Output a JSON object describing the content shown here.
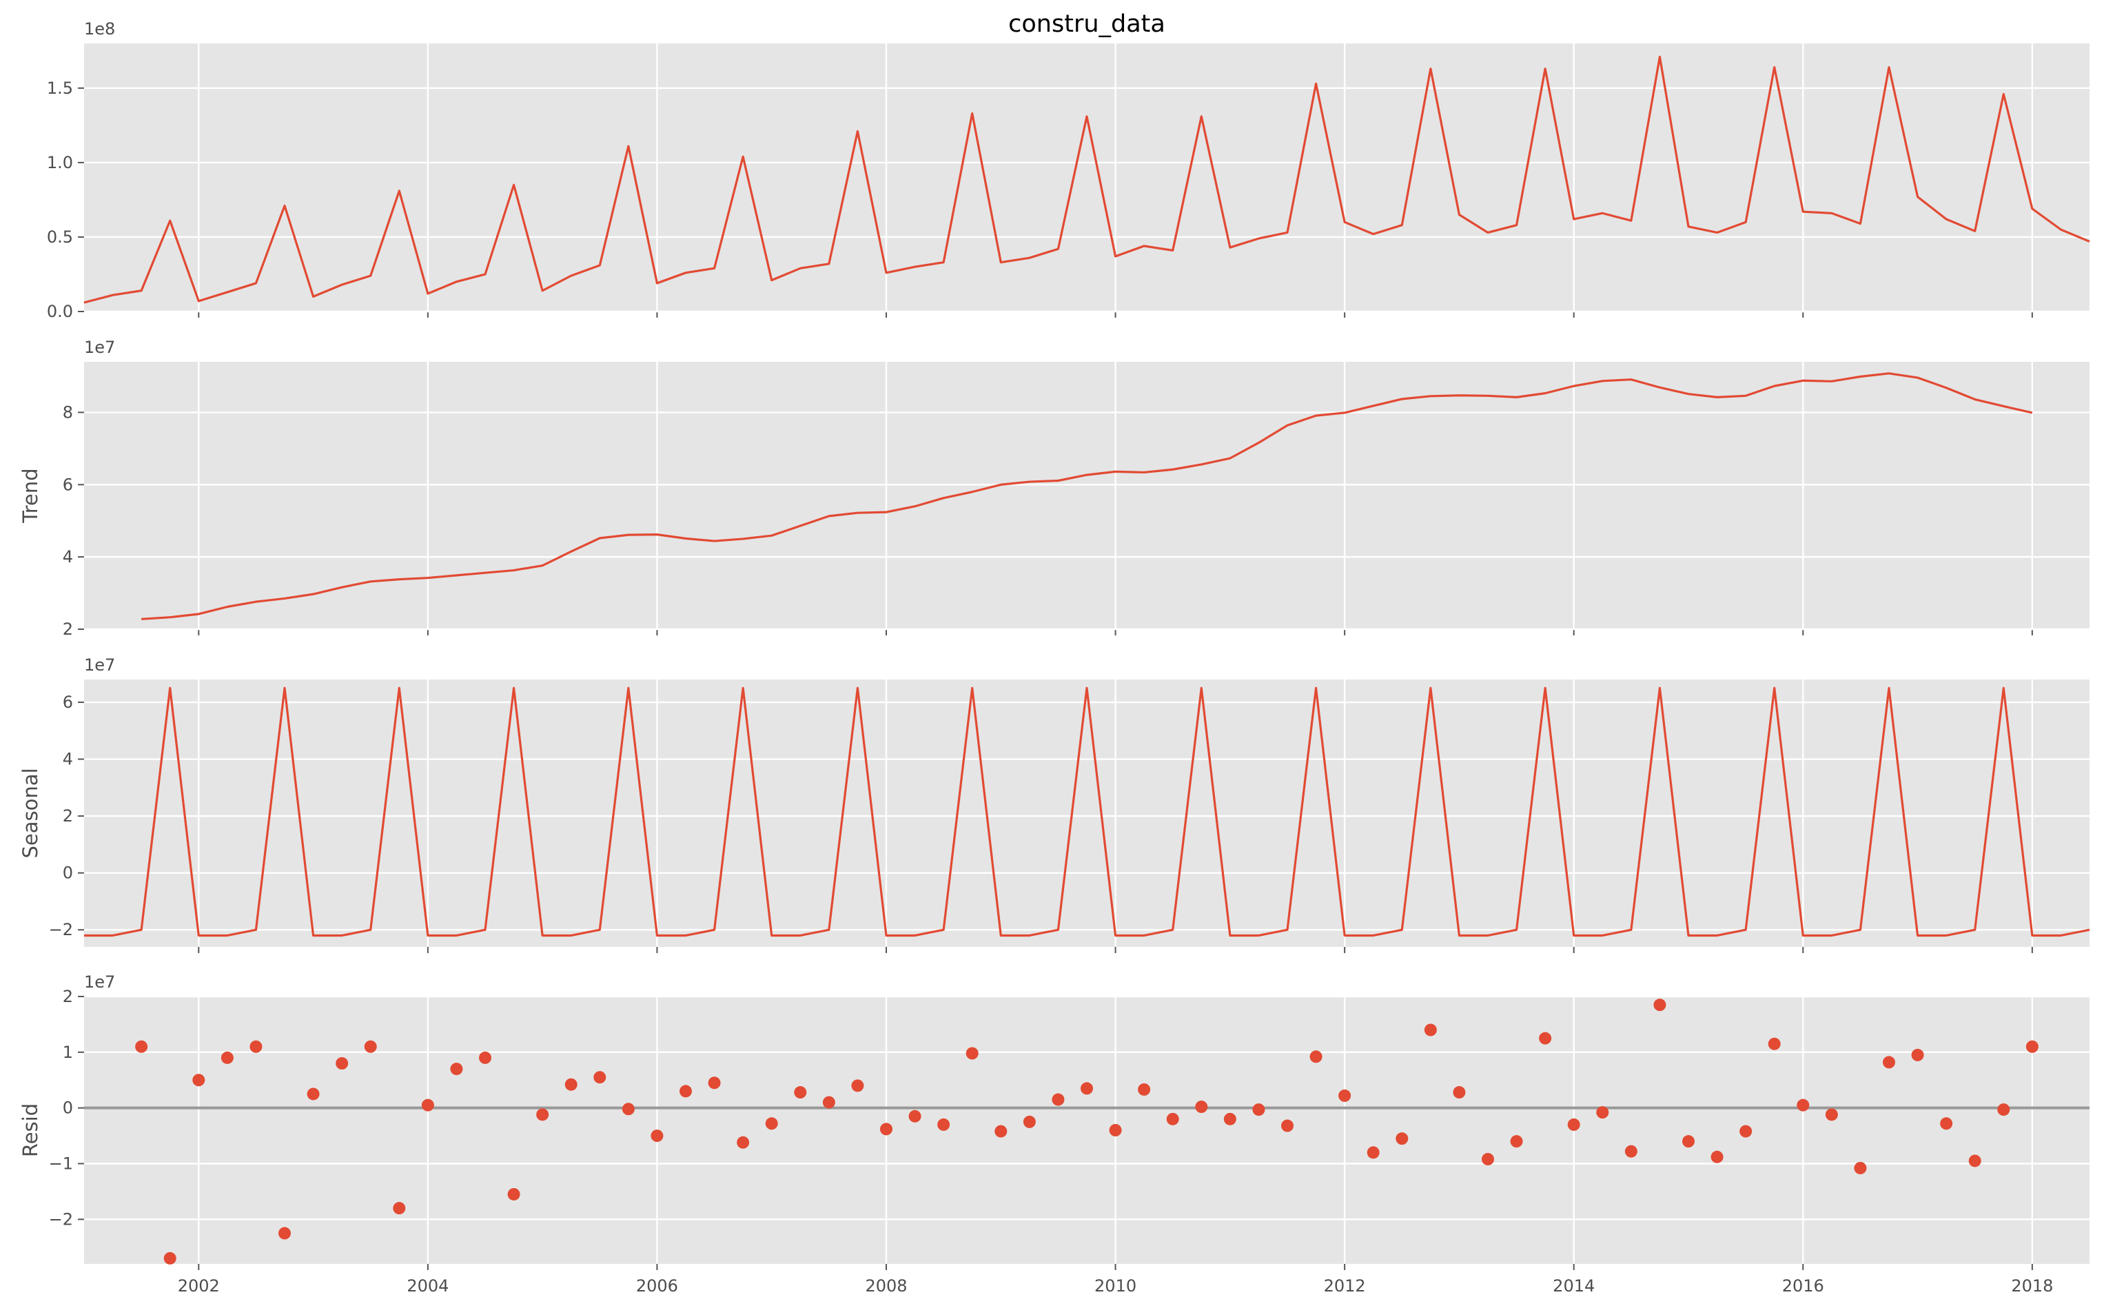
{
  "chart_data": {
    "type": "line",
    "title": "constru_data",
    "x_range": [
      "2001-01-01",
      "2018-07-01"
    ],
    "x_ticks": [
      "2002",
      "2004",
      "2006",
      "2008",
      "2010",
      "2012",
      "2014",
      "2016",
      "2018"
    ],
    "grid": true,
    "panels": [
      {
        "name": "observed",
        "ylabel": "",
        "offset_label": "1e8",
        "ylim": [
          0,
          1.8
        ],
        "y_ticks": [
          0.0,
          0.5,
          1.0,
          1.5
        ],
        "y_tick_labels": [
          "0.0",
          "0.5",
          "1.0",
          "1.5"
        ],
        "style": "line",
        "x": [
          "2001-01-01",
          "2001-04-01",
          "2001-07-01",
          "2001-10-01",
          "2002-01-01",
          "2002-04-01",
          "2002-07-01",
          "2002-10-01",
          "2003-01-01",
          "2003-04-01",
          "2003-07-01",
          "2003-10-01",
          "2004-01-01",
          "2004-04-01",
          "2004-07-01",
          "2004-10-01",
          "2005-01-01",
          "2005-04-01",
          "2005-07-01",
          "2005-10-01",
          "2006-01-01",
          "2006-04-01",
          "2006-07-01",
          "2006-10-01",
          "2007-01-01",
          "2007-04-01",
          "2007-07-01",
          "2007-10-01",
          "2008-01-01",
          "2008-04-01",
          "2008-07-01",
          "2008-10-01",
          "2009-01-01",
          "2009-04-01",
          "2009-07-01",
          "2009-10-01",
          "2010-01-01",
          "2010-04-01",
          "2010-07-01",
          "2010-10-01",
          "2011-01-01",
          "2011-04-01",
          "2011-07-01",
          "2011-10-01",
          "2012-01-01",
          "2012-04-01",
          "2012-07-01",
          "2012-10-01",
          "2013-01-01",
          "2013-04-01",
          "2013-07-01",
          "2013-10-01",
          "2014-01-01",
          "2014-04-01",
          "2014-07-01",
          "2014-10-01",
          "2015-01-01",
          "2015-04-01",
          "2015-07-01",
          "2015-10-01",
          "2016-01-01",
          "2016-04-01",
          "2016-07-01",
          "2016-10-01",
          "2017-01-01",
          "2017-04-01",
          "2017-07-01",
          "2017-10-01",
          "2018-01-01",
          "2018-04-01",
          "2018-07-01"
        ],
        "values": [
          0.06,
          0.11,
          0.14,
          0.61,
          0.07,
          0.13,
          0.19,
          0.71,
          0.1,
          0.18,
          0.24,
          0.81,
          0.12,
          0.2,
          0.25,
          0.85,
          0.14,
          0.24,
          0.31,
          1.11,
          0.19,
          0.26,
          0.29,
          1.04,
          0.21,
          0.29,
          0.32,
          1.21,
          0.26,
          0.3,
          0.33,
          1.33,
          0.33,
          0.36,
          0.42,
          1.31,
          0.37,
          0.44,
          0.41,
          1.31,
          0.43,
          0.49,
          0.53,
          1.53,
          0.6,
          0.52,
          0.58,
          1.63,
          0.65,
          0.53,
          0.58,
          1.63,
          0.62,
          0.66,
          0.61,
          1.71,
          0.57,
          0.53,
          0.6,
          1.64,
          0.67,
          0.66,
          0.59,
          1.64,
          0.77,
          0.62,
          0.54,
          1.46,
          0.69,
          0.55,
          0.47
        ]
      },
      {
        "name": "trend",
        "ylabel": "Trend",
        "offset_label": "1e7",
        "ylim": [
          2,
          9.4
        ],
        "y_ticks": [
          2,
          4,
          6,
          8
        ],
        "y_tick_labels": [
          "2",
          "4",
          "6",
          "8"
        ],
        "style": "line",
        "x": [
          "2001-07-01",
          "2001-10-01",
          "2002-01-01",
          "2002-04-01",
          "2002-07-01",
          "2002-10-01",
          "2003-01-01",
          "2003-04-01",
          "2003-07-01",
          "2003-10-01",
          "2004-01-01",
          "2004-04-01",
          "2004-07-01",
          "2004-10-01",
          "2005-01-01",
          "2005-04-01",
          "2005-07-01",
          "2005-10-01",
          "2006-01-01",
          "2006-04-01",
          "2006-07-01",
          "2006-10-01",
          "2007-01-01",
          "2007-04-01",
          "2007-07-01",
          "2007-10-01",
          "2008-01-01",
          "2008-04-01",
          "2008-07-01",
          "2008-10-01",
          "2009-01-01",
          "2009-04-01",
          "2009-07-01",
          "2009-10-01",
          "2010-01-01",
          "2010-04-01",
          "2010-07-01",
          "2010-10-01",
          "2011-01-01",
          "2011-04-01",
          "2011-07-01",
          "2011-10-01",
          "2012-01-01",
          "2012-04-01",
          "2012-07-01",
          "2012-10-01",
          "2013-01-01",
          "2013-04-01",
          "2013-07-01",
          "2013-10-01",
          "2014-01-01",
          "2014-04-01",
          "2014-07-01",
          "2014-10-01",
          "2015-01-01",
          "2015-04-01",
          "2015-07-01",
          "2015-10-01",
          "2016-01-01",
          "2016-04-01",
          "2016-07-01",
          "2016-10-01",
          "2017-01-01",
          "2017-04-01",
          "2017-07-01",
          "2017-10-01",
          "2018-01-01"
        ],
        "values": [
          2.28,
          2.33,
          2.42,
          2.62,
          2.76,
          2.85,
          2.97,
          3.16,
          3.32,
          3.38,
          3.42,
          3.49,
          3.56,
          3.63,
          3.76,
          4.15,
          4.52,
          4.61,
          4.62,
          4.51,
          4.44,
          4.5,
          4.59,
          4.86,
          5.13,
          5.22,
          5.24,
          5.4,
          5.63,
          5.8,
          6.0,
          6.08,
          6.11,
          6.27,
          6.36,
          6.34,
          6.42,
          6.56,
          6.73,
          7.16,
          7.64,
          7.91,
          7.99,
          8.18,
          8.37,
          8.45,
          8.47,
          8.46,
          8.42,
          8.53,
          8.73,
          8.87,
          8.91,
          8.69,
          8.51,
          8.42,
          8.46,
          8.73,
          8.88,
          8.86,
          8.99,
          9.08,
          8.96,
          8.68,
          8.36,
          8.17,
          7.99
        ]
      },
      {
        "name": "seasonal",
        "ylabel": "Seasonal",
        "offset_label": "1e7",
        "ylim": [
          -2.6,
          6.8
        ],
        "y_ticks": [
          -2,
          0,
          2,
          4,
          6
        ],
        "y_tick_labels": [
          "−2",
          "0",
          "2",
          "4",
          "6"
        ],
        "style": "line",
        "x": [
          "2001-01-01",
          "2001-04-01",
          "2001-07-01",
          "2001-10-01",
          "2002-01-01",
          "2002-04-01",
          "2002-07-01",
          "2002-10-01",
          "2003-01-01",
          "2003-04-01",
          "2003-07-01",
          "2003-10-01",
          "2004-01-01",
          "2004-04-01",
          "2004-07-01",
          "2004-10-01",
          "2005-01-01",
          "2005-04-01",
          "2005-07-01",
          "2005-10-01",
          "2006-01-01",
          "2006-04-01",
          "2006-07-01",
          "2006-10-01",
          "2007-01-01",
          "2007-04-01",
          "2007-07-01",
          "2007-10-01",
          "2008-01-01",
          "2008-04-01",
          "2008-07-01",
          "2008-10-01",
          "2009-01-01",
          "2009-04-01",
          "2009-07-01",
          "2009-10-01",
          "2010-01-01",
          "2010-04-01",
          "2010-07-01",
          "2010-10-01",
          "2011-01-01",
          "2011-04-01",
          "2011-07-01",
          "2011-10-01",
          "2012-01-01",
          "2012-04-01",
          "2012-07-01",
          "2012-10-01",
          "2013-01-01",
          "2013-04-01",
          "2013-07-01",
          "2013-10-01",
          "2014-01-01",
          "2014-04-01",
          "2014-07-01",
          "2014-10-01",
          "2015-01-01",
          "2015-04-01",
          "2015-07-01",
          "2015-10-01",
          "2016-01-01",
          "2016-04-01",
          "2016-07-01",
          "2016-10-01",
          "2017-01-01",
          "2017-04-01",
          "2017-07-01",
          "2017-10-01",
          "2018-01-01",
          "2018-04-01",
          "2018-07-01"
        ],
        "values": [
          -2.2,
          -2.2,
          -2.0,
          6.5,
          -2.2,
          -2.2,
          -2.0,
          6.5,
          -2.2,
          -2.2,
          -2.0,
          6.5,
          -2.2,
          -2.2,
          -2.0,
          6.5,
          -2.2,
          -2.2,
          -2.0,
          6.5,
          -2.2,
          -2.2,
          -2.0,
          6.5,
          -2.2,
          -2.2,
          -2.0,
          6.5,
          -2.2,
          -2.2,
          -2.0,
          6.5,
          -2.2,
          -2.2,
          -2.0,
          6.5,
          -2.2,
          -2.2,
          -2.0,
          6.5,
          -2.2,
          -2.2,
          -2.0,
          6.5,
          -2.2,
          -2.2,
          -2.0,
          6.5,
          -2.2,
          -2.2,
          -2.0,
          6.5,
          -2.2,
          -2.2,
          -2.0,
          6.5,
          -2.2,
          -2.2,
          -2.0,
          6.5,
          -2.2,
          -2.2,
          -2.0,
          6.5,
          -2.2,
          -2.2,
          -2.0,
          6.5,
          -2.2,
          -2.2,
          -2.0
        ]
      },
      {
        "name": "resid",
        "ylabel": "Resid",
        "offset_label": "1e7",
        "ylim": [
          -2.8,
          2.0
        ],
        "y_ticks": [
          -2,
          -1,
          0,
          1,
          2
        ],
        "y_tick_labels": [
          "−2",
          "−1",
          "0",
          "1",
          "2"
        ],
        "style": "scatter",
        "zero_line": true,
        "x": [
          "2001-07-01",
          "2001-10-01",
          "2002-01-01",
          "2002-04-01",
          "2002-07-01",
          "2002-10-01",
          "2003-01-01",
          "2003-04-01",
          "2003-07-01",
          "2003-10-01",
          "2004-01-01",
          "2004-04-01",
          "2004-07-01",
          "2004-10-01",
          "2005-01-01",
          "2005-04-01",
          "2005-07-01",
          "2005-10-01",
          "2006-01-01",
          "2006-04-01",
          "2006-07-01",
          "2006-10-01",
          "2007-01-01",
          "2007-04-01",
          "2007-07-01",
          "2007-10-01",
          "2008-01-01",
          "2008-04-01",
          "2008-07-01",
          "2008-10-01",
          "2009-01-01",
          "2009-04-01",
          "2009-07-01",
          "2009-10-01",
          "2010-01-01",
          "2010-04-01",
          "2010-07-01",
          "2010-10-01",
          "2011-01-01",
          "2011-04-01",
          "2011-07-01",
          "2011-10-01",
          "2012-01-01",
          "2012-04-01",
          "2012-07-01",
          "2012-10-01",
          "2013-01-01",
          "2013-04-01",
          "2013-07-01",
          "2013-10-01",
          "2014-01-01",
          "2014-04-01",
          "2014-07-01",
          "2014-10-01",
          "2015-01-01",
          "2015-04-01",
          "2015-07-01",
          "2015-10-01",
          "2016-01-01",
          "2016-04-01",
          "2016-07-01",
          "2016-10-01",
          "2017-01-01",
          "2017-04-01",
          "2017-07-01",
          "2017-10-01",
          "2018-01-01"
        ],
        "values": [
          1.1,
          -2.7,
          0.5,
          0.9,
          1.1,
          -2.25,
          0.25,
          0.8,
          1.1,
          -1.8,
          0.05,
          0.7,
          0.9,
          -1.55,
          -0.12,
          0.42,
          0.55,
          -0.02,
          -0.5,
          0.3,
          0.45,
          -0.62,
          -0.28,
          0.28,
          0.1,
          0.4,
          -0.38,
          -0.15,
          -0.3,
          0.98,
          -0.42,
          -0.25,
          0.15,
          0.35,
          -0.4,
          0.33,
          -0.2,
          0.02,
          -0.2,
          -0.03,
          -0.32,
          0.92,
          0.22,
          -0.8,
          -0.55,
          1.4,
          0.28,
          -0.92,
          -0.6,
          1.25,
          -0.3,
          -0.08,
          -0.78,
          1.85,
          -0.6,
          -0.88,
          -0.42,
          1.15,
          0.05,
          -0.12,
          -1.08,
          0.82,
          0.95,
          -0.28,
          -0.95,
          -0.03,
          1.1
        ]
      }
    ]
  }
}
